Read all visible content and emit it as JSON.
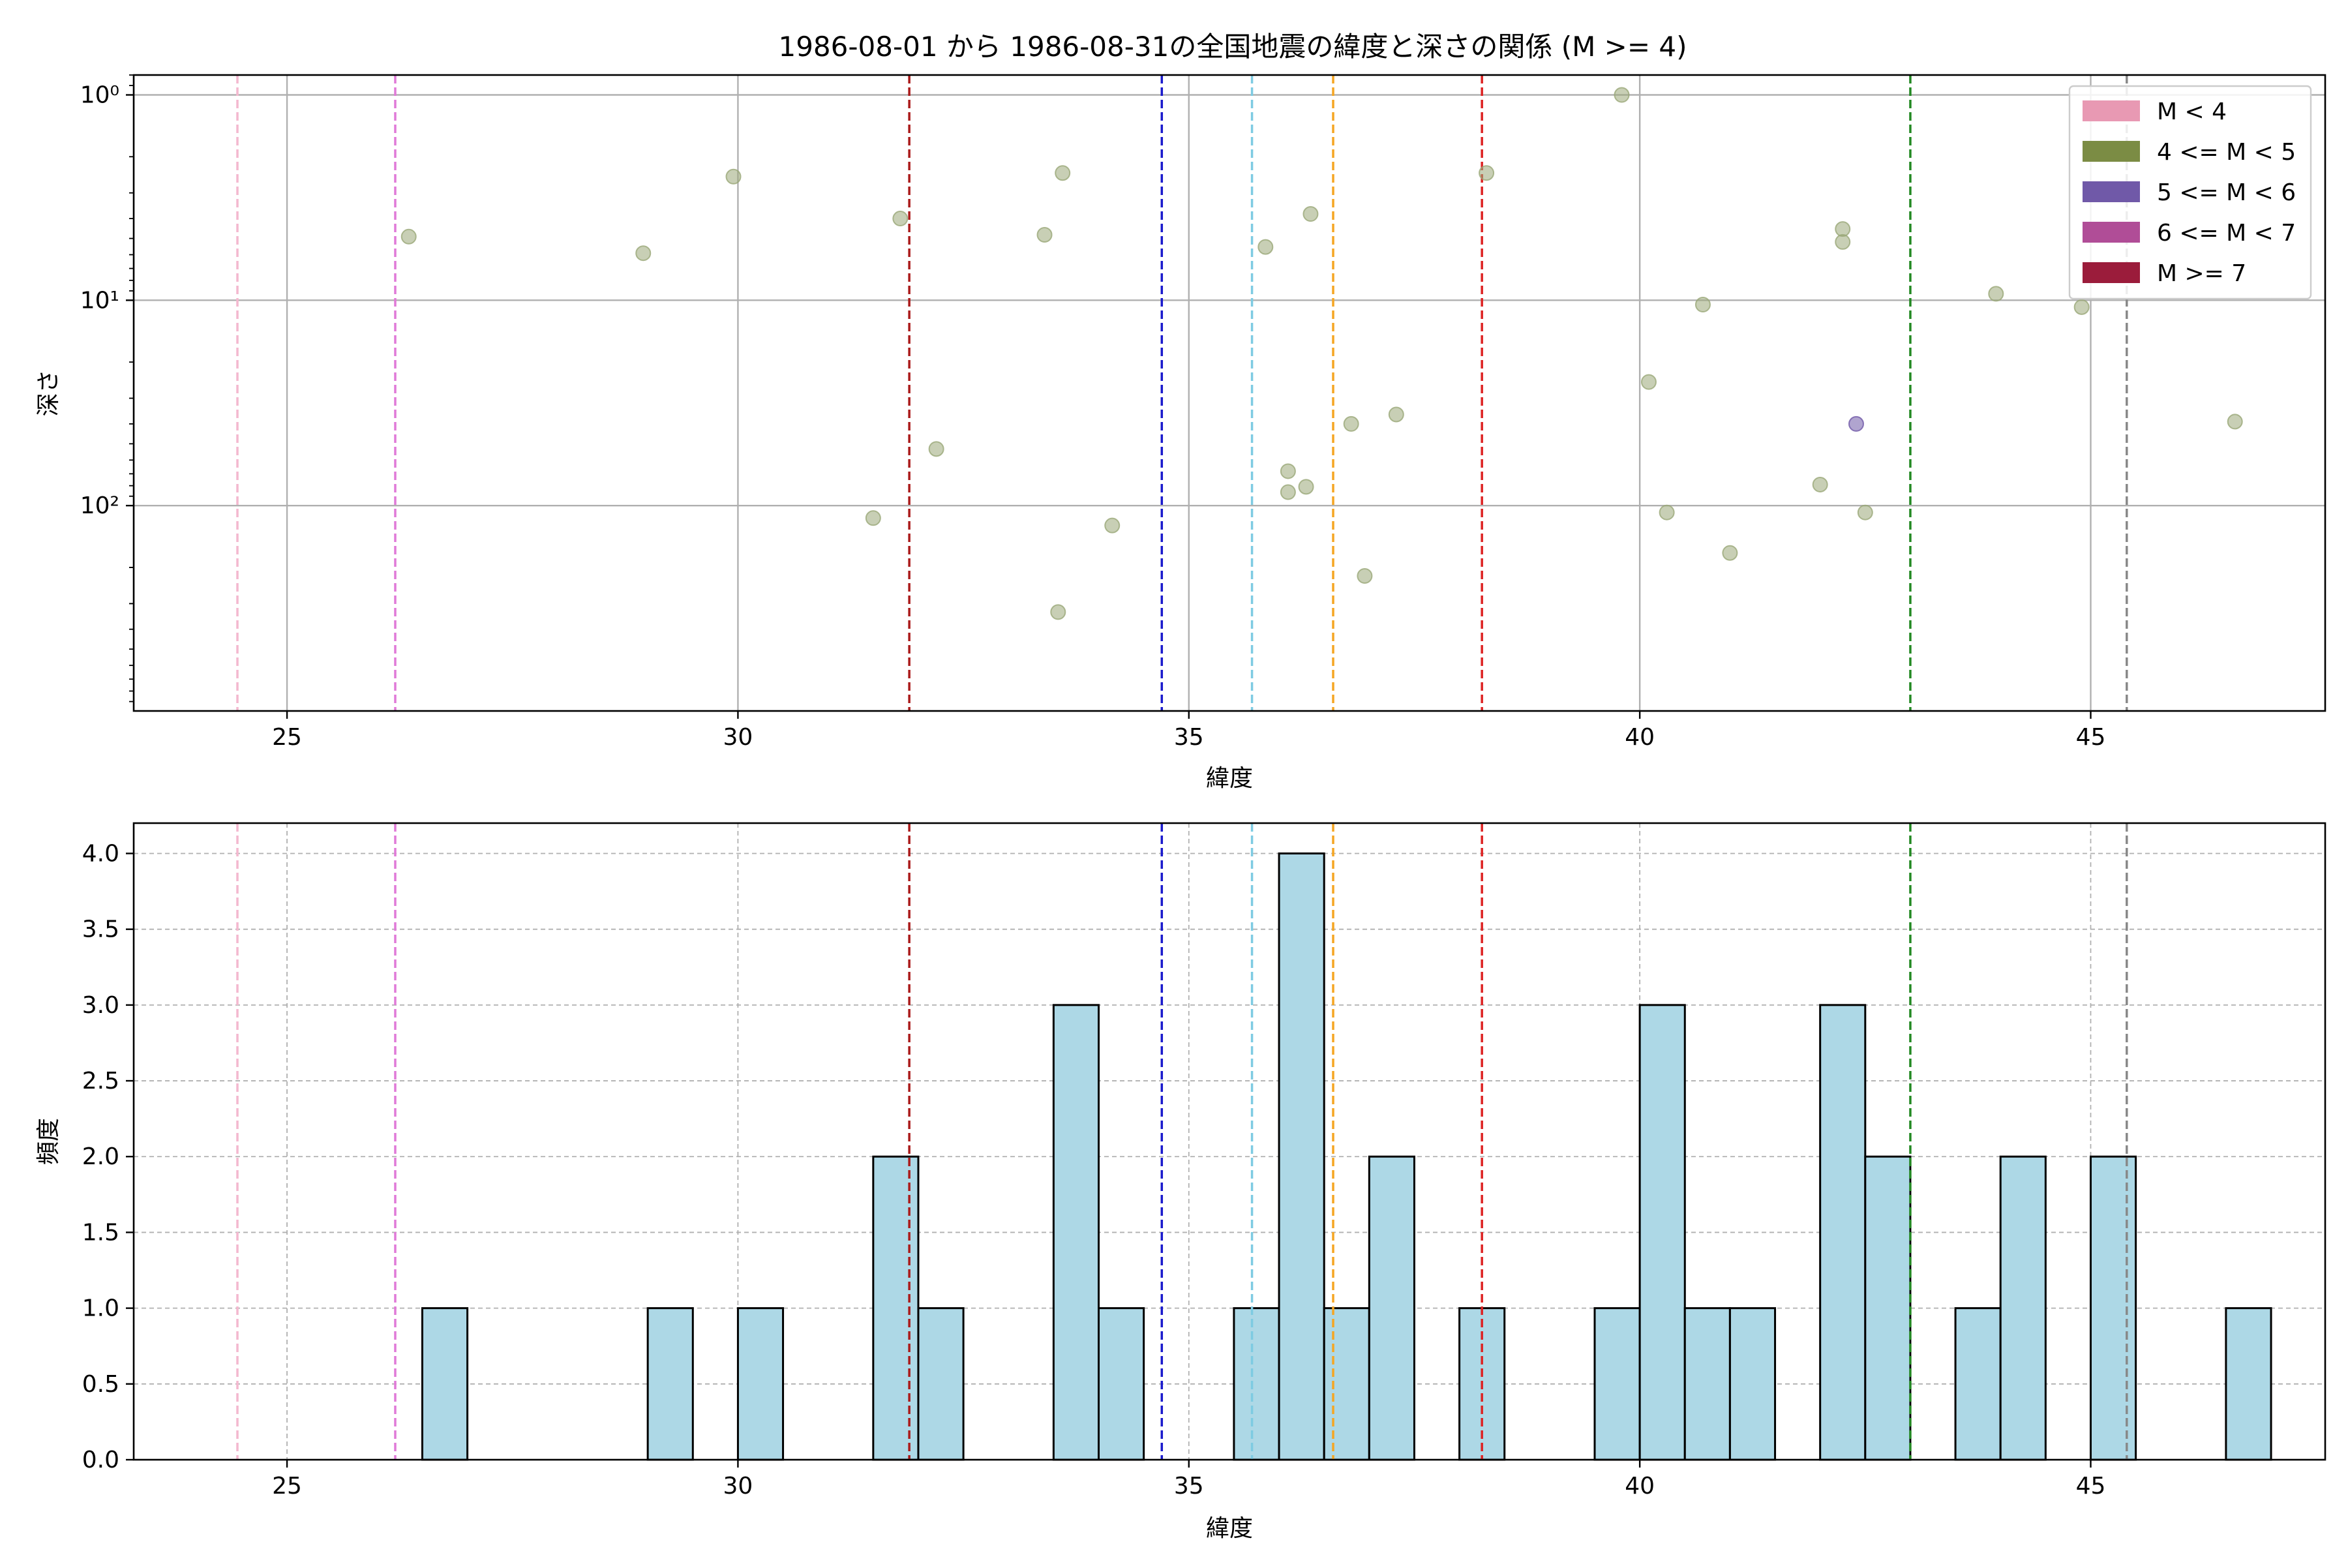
{
  "figure": {
    "title": "1986-08-01 から 1986-08-31の全国地震の緯度と深さの関係 (M >= 4)"
  },
  "chart_data": [
    {
      "type": "scatter",
      "xlabel": "緯度",
      "ylabel": "深さ",
      "xlim": [
        23.3,
        47.6
      ],
      "ylim": [
        1000,
        0.8
      ],
      "yscale": "log",
      "y_inverted": true,
      "xticks": [
        25,
        30,
        35,
        40,
        45
      ],
      "yticks": [
        {
          "value": 1,
          "label": "10⁰"
        },
        {
          "value": 10,
          "label": "10¹"
        },
        {
          "value": 100,
          "label": "10²"
        }
      ],
      "grid": true,
      "legend": {
        "position": "top-right",
        "entries": [
          {
            "label": "M < 4",
            "color": "#e899b3"
          },
          {
            "label": "4 <= M < 5",
            "color": "#7b8c44"
          },
          {
            "label": "5 <= M < 6",
            "color": "#7059a8"
          },
          {
            "label": "6 <= M < 7",
            "color": "#b04d97"
          },
          {
            "label": "M >= 7",
            "color": "#9b1c3b"
          }
        ]
      },
      "vlines": [
        {
          "x": 24.45,
          "color": "#f4b8cf"
        },
        {
          "x": 26.2,
          "color": "#e07ad8"
        },
        {
          "x": 31.9,
          "color": "#aa1a1a"
        },
        {
          "x": 34.7,
          "color": "#1a1acc"
        },
        {
          "x": 35.7,
          "color": "#7ecbe2"
        },
        {
          "x": 36.6,
          "color": "#f5a623"
        },
        {
          "x": 38.25,
          "color": "#dd2222"
        },
        {
          "x": 43.0,
          "color": "#228822"
        },
        {
          "x": 45.4,
          "color": "#888888"
        }
      ],
      "series": [
        {
          "color": "#9aa878",
          "points": [
            {
              "x": 26.35,
              "y": 4.9
            },
            {
              "x": 28.95,
              "y": 5.9
            },
            {
              "x": 29.95,
              "y": 2.5
            },
            {
              "x": 31.5,
              "y": 115
            },
            {
              "x": 31.8,
              "y": 4.0
            },
            {
              "x": 32.2,
              "y": 53
            },
            {
              "x": 33.4,
              "y": 4.8
            },
            {
              "x": 33.55,
              "y": 330
            },
            {
              "x": 33.6,
              "y": 2.4
            },
            {
              "x": 34.15,
              "y": 125
            },
            {
              "x": 35.85,
              "y": 5.5
            },
            {
              "x": 36.1,
              "y": 86
            },
            {
              "x": 36.1,
              "y": 68
            },
            {
              "x": 36.3,
              "y": 81
            },
            {
              "x": 36.35,
              "y": 3.8
            },
            {
              "x": 36.8,
              "y": 40
            },
            {
              "x": 36.95,
              "y": 220
            },
            {
              "x": 37.3,
              "y": 36
            },
            {
              "x": 38.3,
              "y": 2.4
            },
            {
              "x": 39.8,
              "y": 1.0
            },
            {
              "x": 40.1,
              "y": 25
            },
            {
              "x": 40.3,
              "y": 108
            },
            {
              "x": 40.7,
              "y": 10.5
            },
            {
              "x": 41.0,
              "y": 170
            },
            {
              "x": 42.0,
              "y": 79
            },
            {
              "x": 42.25,
              "y": 4.5
            },
            {
              "x": 42.25,
              "y": 5.2
            },
            {
              "x": 42.5,
              "y": 108
            },
            {
              "x": 43.95,
              "y": 9.3
            },
            {
              "x": 44.9,
              "y": 10.8
            },
            {
              "x": 46.6,
              "y": 39
            }
          ]
        },
        {
          "color": "#7059a8",
          "points": [
            {
              "x": 42.4,
              "y": 40
            }
          ]
        }
      ]
    },
    {
      "type": "bar",
      "xlabel": "緯度",
      "ylabel": "頻度",
      "xlim": [
        23.3,
        47.6
      ],
      "ylim": [
        0,
        4.2
      ],
      "xticks": [
        25,
        30,
        35,
        40,
        45
      ],
      "yticks": [
        "0.0",
        "0.5",
        "1.0",
        "1.5",
        "2.0",
        "2.5",
        "3.0",
        "3.5",
        "4.0"
      ],
      "grid": true,
      "bar_color": "#add8e6",
      "bin_width": 0.5,
      "bins": [
        {
          "start": 26.5,
          "count": 1
        },
        {
          "start": 29.0,
          "count": 1
        },
        {
          "start": 30.0,
          "count": 1
        },
        {
          "start": 31.5,
          "count": 2
        },
        {
          "start": 32.0,
          "count": 1
        },
        {
          "start": 33.5,
          "count": 3
        },
        {
          "start": 34.0,
          "count": 1
        },
        {
          "start": 35.5,
          "count": 1
        },
        {
          "start": 36.0,
          "count": 4
        },
        {
          "start": 36.5,
          "count": 1
        },
        {
          "start": 37.0,
          "count": 2
        },
        {
          "start": 38.0,
          "count": 1
        },
        {
          "start": 39.5,
          "count": 1
        },
        {
          "start": 40.0,
          "count": 3
        },
        {
          "start": 40.5,
          "count": 1
        },
        {
          "start": 41.0,
          "count": 1
        },
        {
          "start": 42.0,
          "count": 3
        },
        {
          "start": 42.5,
          "count": 2
        },
        {
          "start": 43.5,
          "count": 1
        },
        {
          "start": 44.0,
          "count": 2
        },
        {
          "start": 45.0,
          "count": 2
        },
        {
          "start": 46.5,
          "count": 1
        }
      ],
      "vlines": [
        {
          "x": 24.45,
          "color": "#f4b8cf"
        },
        {
          "x": 26.2,
          "color": "#e07ad8"
        },
        {
          "x": 31.9,
          "color": "#aa1a1a"
        },
        {
          "x": 34.7,
          "color": "#1a1acc"
        },
        {
          "x": 35.7,
          "color": "#7ecbe2"
        },
        {
          "x": 36.6,
          "color": "#f5a623"
        },
        {
          "x": 38.25,
          "color": "#dd2222"
        },
        {
          "x": 43.0,
          "color": "#228822"
        },
        {
          "x": 45.4,
          "color": "#888888"
        }
      ]
    }
  ]
}
